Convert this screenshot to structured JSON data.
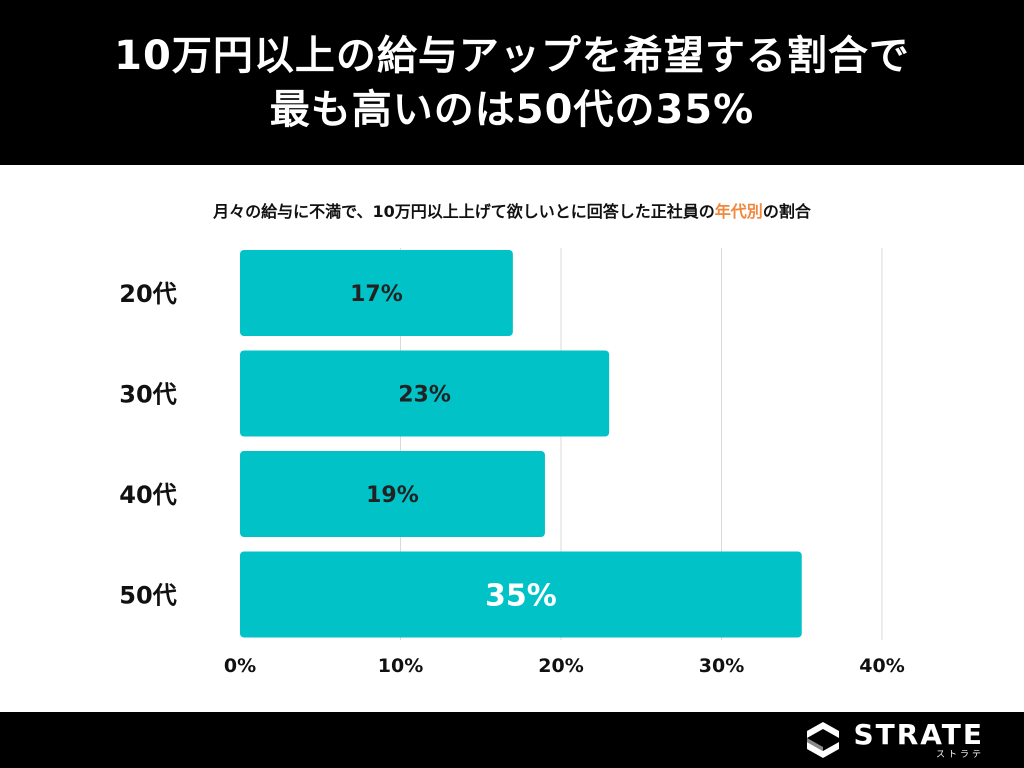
{
  "header": {
    "title_line1": "10万円以上の給与アップを希望する割合で",
    "title_line2": "最も高いのは50代の35%"
  },
  "subtitle": {
    "before": "月々の給与に不満で、10万円以上上げて欲しいとに回答した正社員の",
    "highlight": "年代別",
    "after": "の割合"
  },
  "colors": {
    "bar": "#00c2c7",
    "highlight": "#f0883e",
    "grid": "#d9d9d9"
  },
  "chart_data": {
    "type": "bar",
    "orientation": "horizontal",
    "categories": [
      "20代",
      "30代",
      "40代",
      "50代"
    ],
    "values": [
      17,
      23,
      19,
      35
    ],
    "data_labels": [
      "17%",
      "23%",
      "19%",
      "35%"
    ],
    "xlim": [
      0,
      40
    ],
    "x_ticks": [
      0,
      10,
      20,
      30,
      40
    ],
    "x_tick_labels": [
      "0%",
      "10%",
      "20%",
      "30%",
      "40%"
    ],
    "grid": true
  },
  "footer": {
    "logo_text": "STRATE",
    "logo_sub": "ストラテ"
  }
}
